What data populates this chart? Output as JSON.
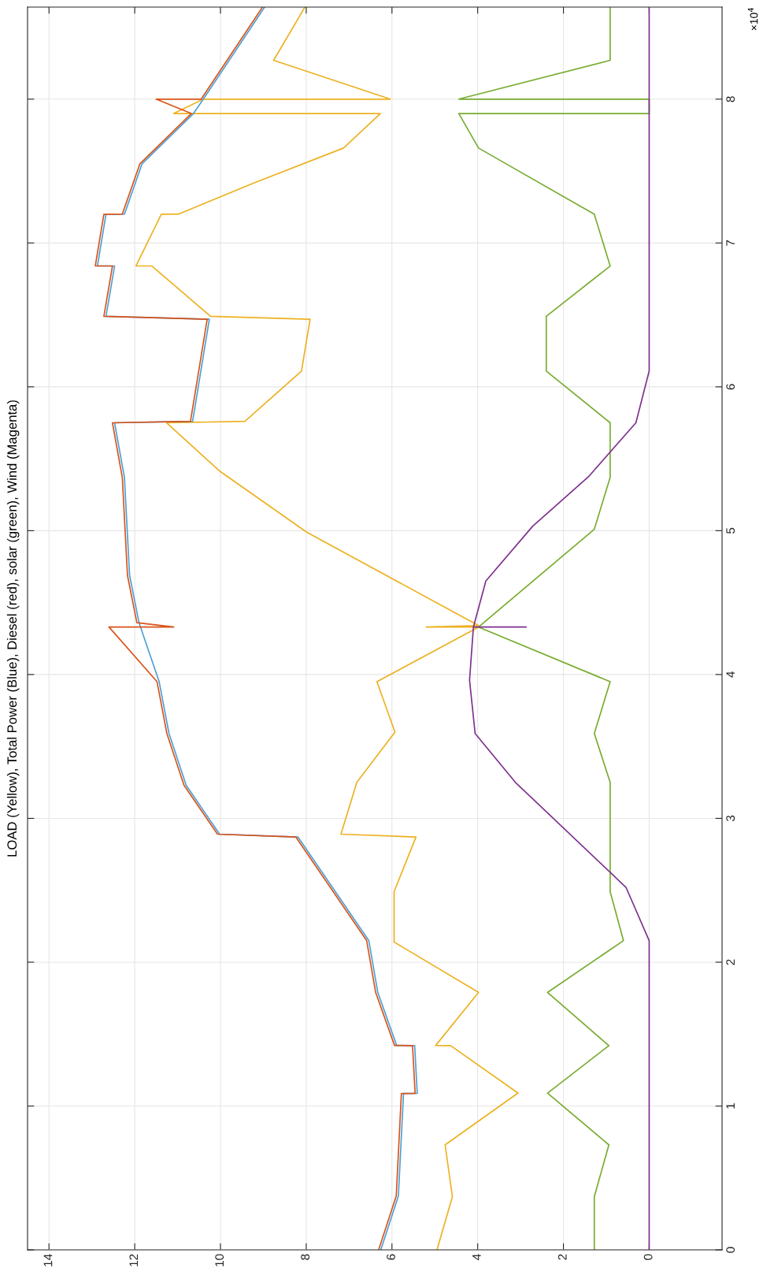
{
  "chart_data": {
    "type": "line",
    "title": "LOAD (Yellow), Total Power (Blue), Diesel (red), solar (green), Wind (Magenta)",
    "annotations": [
      "×10$^{4}$"
    ],
    "xlim": [
      14.5,
      -1.7
    ],
    "xticks": [
      14,
      12,
      10,
      8,
      6,
      4,
      2,
      0
    ],
    "ylim": [
      0,
      8.64
    ],
    "yticks": [
      0,
      1,
      2,
      3,
      4,
      5,
      6,
      7,
      8
    ],
    "grid": true,
    "line_style": "solid",
    "series": [
      {
        "color": "#edb120",
        "values": [
          0,
          0.37,
          0.73,
          1.09,
          1.42,
          1.421,
          1.79,
          2.14,
          2.49,
          2.87,
          2.89,
          3.25,
          3.6,
          3.95,
          4.33,
          4.33,
          4.34,
          4.99,
          5.41,
          5.75,
          5.76,
          6.11,
          6.47,
          6.49,
          6.84,
          6.841,
          7.2,
          7.201,
          7.42,
          7.66,
          7.9,
          7.9,
          8.0,
          8.0,
          8.27,
          8.64
        ],
        "x": [
          4.95,
          4.59,
          4.76,
          3.06,
          4.63,
          4.98,
          3.98,
          5.95,
          5.95,
          5.44,
          7.19,
          6.82,
          5.93,
          6.35,
          3.98,
          5.2,
          3.98,
          7.99,
          10.0,
          11.26,
          9.43,
          8.11,
          7.91,
          10.23,
          11.6,
          11.97,
          11.38,
          10.98,
          9.2,
          7.13,
          6.27,
          11.09,
          10.4,
          6.04,
          8.76,
          8.03
        ]
      },
      {
        "color": "#4d9fd6",
        "values": [
          0,
          0.375,
          1.087,
          1.088,
          1.42,
          1.421,
          1.79,
          2.15,
          2.87,
          2.89,
          3.23,
          3.59,
          3.95,
          4.36,
          4.69,
          5.37,
          5.75,
          5.76,
          6.47,
          6.49,
          6.84,
          6.841,
          7.2,
          7.201,
          7.55,
          7.9,
          8.0,
          8.64
        ],
        "x": [
          6.26,
          5.85,
          5.73,
          5.41,
          5.47,
          5.89,
          6.33,
          6.54,
          8.19,
          10.02,
          10.8,
          11.2,
          11.43,
          11.9,
          12.12,
          12.24,
          12.47,
          10.65,
          10.26,
          12.67,
          12.47,
          12.87,
          12.67,
          12.24,
          11.83,
          10.63,
          10.4,
          8.97
        ]
      },
      {
        "color": "#d95319",
        "values": [
          0,
          0.375,
          1.087,
          1.088,
          1.42,
          1.421,
          1.79,
          2.15,
          2.87,
          2.89,
          3.23,
          3.59,
          3.95,
          4.33,
          4.33,
          4.36,
          4.69,
          5.37,
          5.75,
          5.76,
          6.47,
          6.49,
          6.84,
          6.841,
          7.2,
          7.201,
          7.55,
          7.9,
          8.0,
          8.0,
          8.64
        ],
        "x": [
          6.31,
          5.9,
          5.78,
          5.46,
          5.52,
          5.94,
          6.38,
          6.59,
          8.24,
          10.07,
          10.85,
          11.25,
          11.48,
          12.6,
          11.09,
          11.95,
          12.17,
          12.29,
          12.52,
          10.7,
          10.31,
          12.72,
          12.52,
          12.92,
          12.72,
          12.29,
          11.88,
          10.68,
          11.5,
          10.45,
          9.02
        ]
      },
      {
        "color": "#77ac30",
        "values": [
          0,
          0.37,
          0.73,
          1.09,
          1.42,
          1.79,
          2.15,
          2.49,
          3.25,
          3.59,
          3.95,
          4.33,
          5.01,
          5.37,
          5.75,
          6.11,
          6.49,
          6.84,
          7.2,
          7.66,
          7.9,
          7.9,
          8.0,
          8.0,
          8.27,
          8.64
        ],
        "x": [
          1.28,
          1.28,
          0.94,
          2.37,
          0.94,
          2.37,
          0.6,
          0.91,
          0.91,
          1.28,
          0.91,
          3.98,
          1.28,
          0.91,
          0.91,
          2.4,
          2.4,
          0.91,
          1.28,
          3.98,
          4.44,
          0,
          0,
          4.44,
          0.91,
          0.91
        ]
      },
      {
        "color": "#7e2f8e",
        "values": [
          0,
          2.15,
          2.52,
          3.25,
          3.59,
          3.96,
          4.33,
          4.33,
          4.33,
          4.65,
          5.03,
          5.38,
          5.75,
          6.11,
          8.64
        ],
        "x": [
          0,
          0,
          0.54,
          3.12,
          4.06,
          4.19,
          4.1,
          2.87,
          4.1,
          3.81,
          2.72,
          1.4,
          0.31,
          0,
          0
        ]
      }
    ]
  }
}
